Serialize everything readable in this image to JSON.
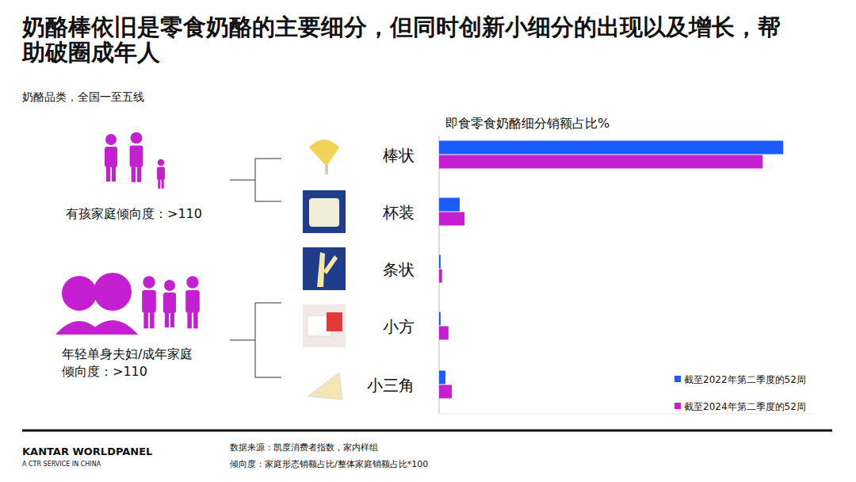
{
  "chart_data": {
    "type": "bar",
    "orientation": "horizontal",
    "title": "奶酪棒依旧是零食奶酪的主要细分，但同时创新小细分的出现以及增长，帮助破圈成年人",
    "subtitle": "奶酪品类，全国一至五线",
    "xlabel": "即食零食奶酪细分销额占比%",
    "categories": [
      "棒状",
      "杯装",
      "条状",
      "小方",
      "小三角"
    ],
    "series": [
      {
        "name": "截至2022年第二季度的52周",
        "color": "#1a5cff",
        "values": [
          92,
          5.5,
          0.4,
          0.4,
          1.7
        ]
      },
      {
        "name": "截至2024年第二季度的52周",
        "color": "#c41fd1",
        "values": [
          86.5,
          6.8,
          0.8,
          2.5,
          3.4
        ]
      }
    ],
    "xlim": [
      0,
      100
    ],
    "tick_labels": false,
    "grid": false,
    "legend": "lower right"
  },
  "groups": [
    {
      "label": "有孩家庭倾向度：>110"
    },
    {
      "label": "年轻单身夫妇/成年家庭倾向度：>110"
    }
  ],
  "footer": {
    "brand": "KANTAR WORLDPANEL",
    "tagline": "A CTR SERVICE IN CHINA",
    "source": "数据来源：凯度消费者指数，家内样组",
    "note": "倾向度：家庭形态销额占比/整体家庭销额占比*100"
  }
}
